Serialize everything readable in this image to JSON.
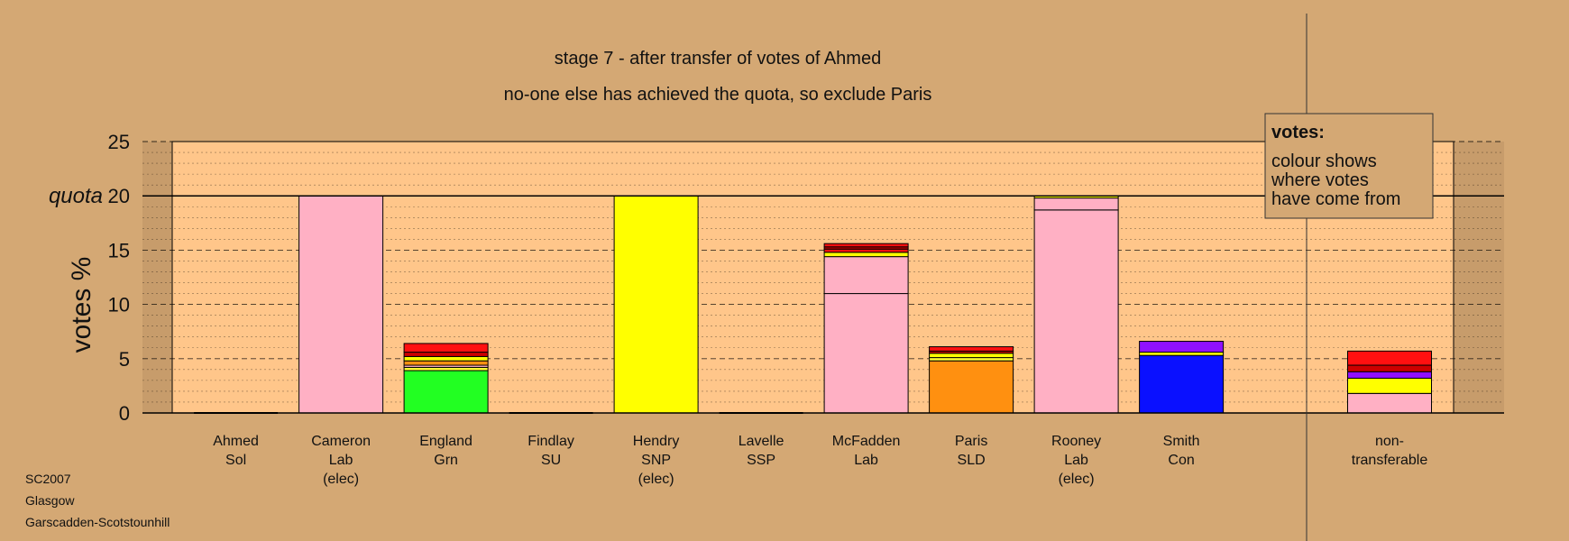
{
  "chart_data": {
    "type": "bar",
    "stacked": true,
    "title": "stage 7 - after transfer of votes of Ahmed",
    "subtitle": "no-one else has achieved the quota, so exclude Paris",
    "ylabel": "votes %",
    "ylim": [
      0,
      25
    ],
    "yticks": [
      "0",
      "5",
      "10",
      "15",
      "20",
      "25"
    ],
    "quota_value": 20,
    "quota_label": "quota",
    "grid": true,
    "categories": [
      {
        "name": "Ahmed",
        "party": "Sol",
        "note": ""
      },
      {
        "name": "Cameron",
        "party": "Lab",
        "note": "(elec)"
      },
      {
        "name": "England",
        "party": "Grn",
        "note": ""
      },
      {
        "name": "Findlay",
        "party": "SU",
        "note": ""
      },
      {
        "name": "Hendry",
        "party": "SNP",
        "note": "(elec)"
      },
      {
        "name": "Lavelle",
        "party": "SSP",
        "note": ""
      },
      {
        "name": "McFadden",
        "party": "Lab",
        "note": ""
      },
      {
        "name": "Paris",
        "party": "SLD",
        "note": ""
      },
      {
        "name": "Rooney",
        "party": "Lab",
        "note": "(elec)"
      },
      {
        "name": "Smith",
        "party": "Con",
        "note": ""
      }
    ],
    "nontransferable_label": [
      "non-",
      "transferable"
    ],
    "stacks": [
      [],
      [
        {
          "value": 20.0,
          "color": "#ffb0c4"
        }
      ],
      [
        {
          "value": 3.9,
          "color": "#22ff22"
        },
        {
          "value": 0.3,
          "color": "#ffff33"
        },
        {
          "value": 0.2,
          "color": "#ffb0c4"
        },
        {
          "value": 0.4,
          "color": "#ff9010"
        },
        {
          "value": 0.4,
          "color": "#ffff00"
        },
        {
          "value": 0.4,
          "color": "#cc0000"
        },
        {
          "value": 0.8,
          "color": "#ff1010"
        }
      ],
      [],
      [
        {
          "value": 20.0,
          "color": "#ffff00"
        }
      ],
      [],
      [
        {
          "value": 11.0,
          "color": "#ffb0c4"
        },
        {
          "value": 3.4,
          "color": "#ffb0c4"
        },
        {
          "value": 0.4,
          "color": "#ffff00"
        },
        {
          "value": 0.3,
          "color": "#ff1010"
        },
        {
          "value": 0.2,
          "color": "#cc0000"
        },
        {
          "value": 0.3,
          "color": "#ff1010"
        }
      ],
      [
        {
          "value": 4.8,
          "color": "#ff9010"
        },
        {
          "value": 0.3,
          "color": "#ffff33"
        },
        {
          "value": 0.4,
          "color": "#ffff00"
        },
        {
          "value": 0.2,
          "color": "#cc0000"
        },
        {
          "value": 0.4,
          "color": "#ff1010"
        }
      ],
      [
        {
          "value": 18.7,
          "color": "#ffb0c4"
        },
        {
          "value": 1.1,
          "color": "#ffb0c4"
        },
        {
          "value": 0.2,
          "color": "#ffff00"
        }
      ],
      [
        {
          "value": 5.3,
          "color": "#0a10ff"
        },
        {
          "value": 0.3,
          "color": "#ffff00"
        },
        {
          "value": 1.0,
          "color": "#9010ff"
        }
      ]
    ],
    "nontransferable_stack": [
      {
        "value": 1.8,
        "color": "#ffb0c4"
      },
      {
        "value": 1.4,
        "color": "#ffff00"
      },
      {
        "value": 0.6,
        "color": "#9010ff"
      },
      {
        "value": 0.6,
        "color": "#cc0000"
      },
      {
        "value": 1.3,
        "color": "#ff1010"
      }
    ],
    "legend": {
      "title": "votes:",
      "lines": [
        "colour shows",
        "where votes",
        "have come from"
      ],
      "position": "top-right"
    }
  },
  "footer": [
    "SC2007",
    "Glasgow",
    "Garscadden-Scotstounhill"
  ],
  "colors": {
    "background": "#d4a874",
    "plot_band": "#ffc68a"
  }
}
